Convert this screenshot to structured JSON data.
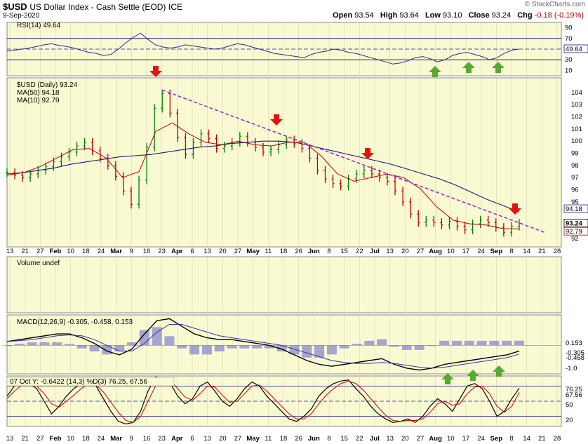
{
  "header": {
    "symbol": "$USD",
    "description": "US Dollar Index - Cash Settle (EOD)",
    "exchange": "ICE",
    "date": "9-Sep-2020",
    "watermark": "© StockCharts.com",
    "open_label": "Open",
    "open": "93.54",
    "high_label": "High",
    "high": "93.64",
    "low_label": "Low",
    "low": "93.10",
    "close_label": "Close",
    "close": "93.24",
    "chg_label": "Chg",
    "chg": "-0.18 (-0.19%)"
  },
  "colors": {
    "panel_bg": "#fafad2",
    "up": "#008000",
    "down": "#c00000",
    "ma50": "#1a1a80",
    "ma10": "#c00000",
    "trend": "#9932cc",
    "arrow_down": "#e81010",
    "arrow_up": "#55aa33"
  },
  "x_axis": {
    "labels": [
      "13",
      "21",
      "27",
      "Feb",
      "10",
      "18",
      "24",
      "Mar",
      "9",
      "16",
      "23",
      "Apr",
      "6",
      "13",
      "20",
      "27",
      "May",
      "11",
      "18",
      "26",
      "Jun",
      "8",
      "15",
      "22",
      "Jul",
      "13",
      "20",
      "27",
      "Aug",
      "10",
      "17",
      "24",
      "Sep",
      "8",
      "14",
      "21",
      "28"
    ],
    "bold": [
      "Feb",
      "Mar",
      "Apr",
      "May",
      "Jun",
      "Jul",
      "Aug",
      "Sep"
    ]
  },
  "chart_data": [
    {
      "type": "line",
      "panel": "rsi",
      "legend": "RSI(14) 49.64",
      "ylim": [
        0,
        100
      ],
      "ticks": [
        "90",
        "70",
        "50",
        "30",
        "10"
      ],
      "reference_lines": [
        70,
        30
      ],
      "last_value": "49.64",
      "series": [
        {
          "name": "RSI(14)",
          "values": [
            46,
            48,
            50,
            52,
            55,
            58,
            60,
            57,
            55,
            52,
            48,
            44,
            42,
            38,
            40,
            50,
            62,
            72,
            80,
            68,
            58,
            54,
            52,
            54,
            58,
            56,
            54,
            52,
            50,
            52,
            56,
            60,
            58,
            54,
            50,
            46,
            42,
            40,
            38,
            36,
            34,
            40,
            44,
            46,
            50,
            48,
            44,
            42,
            38,
            34,
            30,
            26,
            22,
            24,
            28,
            34,
            36,
            32,
            26,
            30,
            38,
            42,
            44,
            40,
            36,
            30,
            34,
            42,
            48,
            50
          ]
        }
      ]
    },
    {
      "type": "candlestick",
      "panel": "price",
      "legend": [
        "$USD (Daily) 93.24",
        "MA(50) 94.18",
        "MA(10) 92.79"
      ],
      "ylim": [
        91.3,
        105.2
      ],
      "ticks": [
        "104",
        "103",
        "102",
        "101",
        "100",
        "99",
        "98",
        "97",
        "96",
        "95",
        "92"
      ],
      "last_labels": {
        "ma50": "94.18",
        "close": "93.24",
        "ma10": "92.79"
      },
      "series": [
        {
          "name": "$USD (Daily)",
          "values": [
            97.4,
            97.2,
            97.0,
            97.3,
            97.6,
            97.9,
            98.3,
            98.7,
            99.1,
            99.6,
            99.9,
            99.2,
            98.6,
            98.0,
            97.1,
            95.9,
            94.8,
            96.8,
            99.5,
            102.7,
            103.9,
            102.3,
            100.3,
            98.9,
            99.9,
            100.6,
            100.2,
            99.4,
            99.6,
            99.9,
            100.4,
            99.9,
            99.5,
            99.1,
            99.3,
            99.7,
            100.1,
            99.8,
            99.4,
            98.6,
            97.6,
            96.9,
            96.5,
            96.3,
            96.9,
            97.3,
            97.6,
            97.3,
            97.0,
            96.7,
            95.9,
            95.0,
            94.0,
            93.3,
            93.5,
            93.3,
            93.1,
            93.4,
            93.0,
            92.7,
            93.2,
            93.5,
            93.3,
            92.9,
            92.5,
            93.0,
            93.24
          ]
        },
        {
          "name": "MA(50)",
          "values": [
            97.3,
            97.4,
            97.6,
            97.8,
            98.1,
            98.3,
            98.5,
            98.7,
            98.8,
            98.9,
            99.1,
            99.3,
            99.5,
            99.6,
            99.8,
            99.9,
            100.0,
            100.0,
            99.9,
            99.6,
            99.3,
            99.0,
            98.7,
            98.4,
            98.1,
            97.7,
            97.3,
            96.9,
            96.4,
            95.8,
            95.2,
            94.7,
            94.18
          ]
        },
        {
          "name": "MA(10)",
          "values": [
            97.2,
            97.4,
            97.9,
            98.6,
            99.3,
            99.4,
            98.6,
            97.0,
            97.5,
            100.8,
            101.5,
            100.6,
            99.9,
            99.7,
            100.0,
            99.7,
            99.6,
            99.9,
            99.9,
            98.8,
            97.3,
            96.7,
            97.0,
            97.3,
            97.0,
            96.1,
            94.6,
            93.5,
            93.2,
            93.1,
            92.8,
            92.79
          ]
        }
      ],
      "trendline": "descending resistance from late-March high to early September"
    },
    {
      "type": "bar",
      "panel": "volume",
      "legend": "Volume undef"
    },
    {
      "type": "line",
      "panel": "macd",
      "legend": "MACD(12,26,9) -0.305, -0.458, 0.153",
      "ticks": [
        "0.153",
        "-0.305",
        "-0.458",
        "-1.0"
      ],
      "series": [
        {
          "name": "MACD",
          "values": [
            0.2,
            0.3,
            0.4,
            0.5,
            0.6,
            0.6,
            0.4,
            0.1,
            -0.3,
            -0.5,
            -0.2,
            0.6,
            1.3,
            1.4,
            1.0,
            0.6,
            0.4,
            0.3,
            0.3,
            0.2,
            0.1,
            0.0,
            -0.2,
            -0.5,
            -0.8,
            -1.0,
            -1.1,
            -1.0,
            -0.9,
            -0.8,
            -0.7,
            -1.0,
            -1.2,
            -1.3,
            -1.2,
            -1.0,
            -0.9,
            -0.8,
            -0.7,
            -0.6,
            -0.5,
            -0.305
          ]
        },
        {
          "name": "Signal",
          "values": [
            0.2,
            0.25,
            0.3,
            0.4,
            0.5,
            0.55,
            0.5,
            0.3,
            0.0,
            -0.3,
            -0.3,
            0.1,
            0.7,
            1.1,
            1.1,
            0.9,
            0.7,
            0.5,
            0.4,
            0.3,
            0.2,
            0.1,
            0.0,
            -0.2,
            -0.4,
            -0.6,
            -0.8,
            -0.9,
            -0.95,
            -0.95,
            -0.9,
            -0.95,
            -1.05,
            -1.15,
            -1.2,
            -1.15,
            -1.05,
            -0.95,
            -0.85,
            -0.75,
            -0.65,
            -0.458
          ]
        }
      ]
    },
    {
      "type": "line",
      "panel": "stochastic",
      "legend": "07 Oct Y: -0.6422 (14,3) %D(3) 76.25, 67.56",
      "ylim": [
        0,
        100
      ],
      "ticks": [
        "76.25",
        "67.56",
        "50",
        "20"
      ],
      "reference_lines": [
        80,
        50,
        20
      ],
      "series": [
        {
          "name": "%K",
          "values": [
            60,
            80,
            90,
            85,
            75,
            50,
            25,
            40,
            60,
            75,
            85,
            90,
            80,
            55,
            30,
            10,
            5,
            8,
            30,
            70,
            98,
            95,
            85,
            60,
            45,
            55,
            80,
            88,
            70,
            50,
            40,
            55,
            75,
            88,
            80,
            60,
            45,
            30,
            15,
            10,
            20,
            35,
            60,
            75,
            85,
            90,
            92,
            75,
            60,
            40,
            25,
            15,
            8,
            10,
            15,
            8,
            20,
            40,
            55,
            45,
            30,
            55,
            80,
            85,
            75,
            50,
            20,
            30,
            55,
            76
          ]
        },
        {
          "name": "%D",
          "values": [
            55,
            70,
            82,
            85,
            80,
            65,
            45,
            38,
            50,
            62,
            75,
            85,
            82,
            68,
            48,
            28,
            12,
            8,
            20,
            50,
            80,
            92,
            90,
            75,
            58,
            52,
            65,
            80,
            78,
            62,
            48,
            50,
            65,
            80,
            82,
            70,
            55,
            40,
            25,
            15,
            15,
            25,
            45,
            62,
            75,
            85,
            90,
            85,
            72,
            55,
            38,
            22,
            12,
            10,
            12,
            12,
            15,
            28,
            45,
            50,
            42,
            45,
            65,
            78,
            80,
            65,
            40,
            28,
            40,
            67.56
          ]
        }
      ]
    }
  ]
}
